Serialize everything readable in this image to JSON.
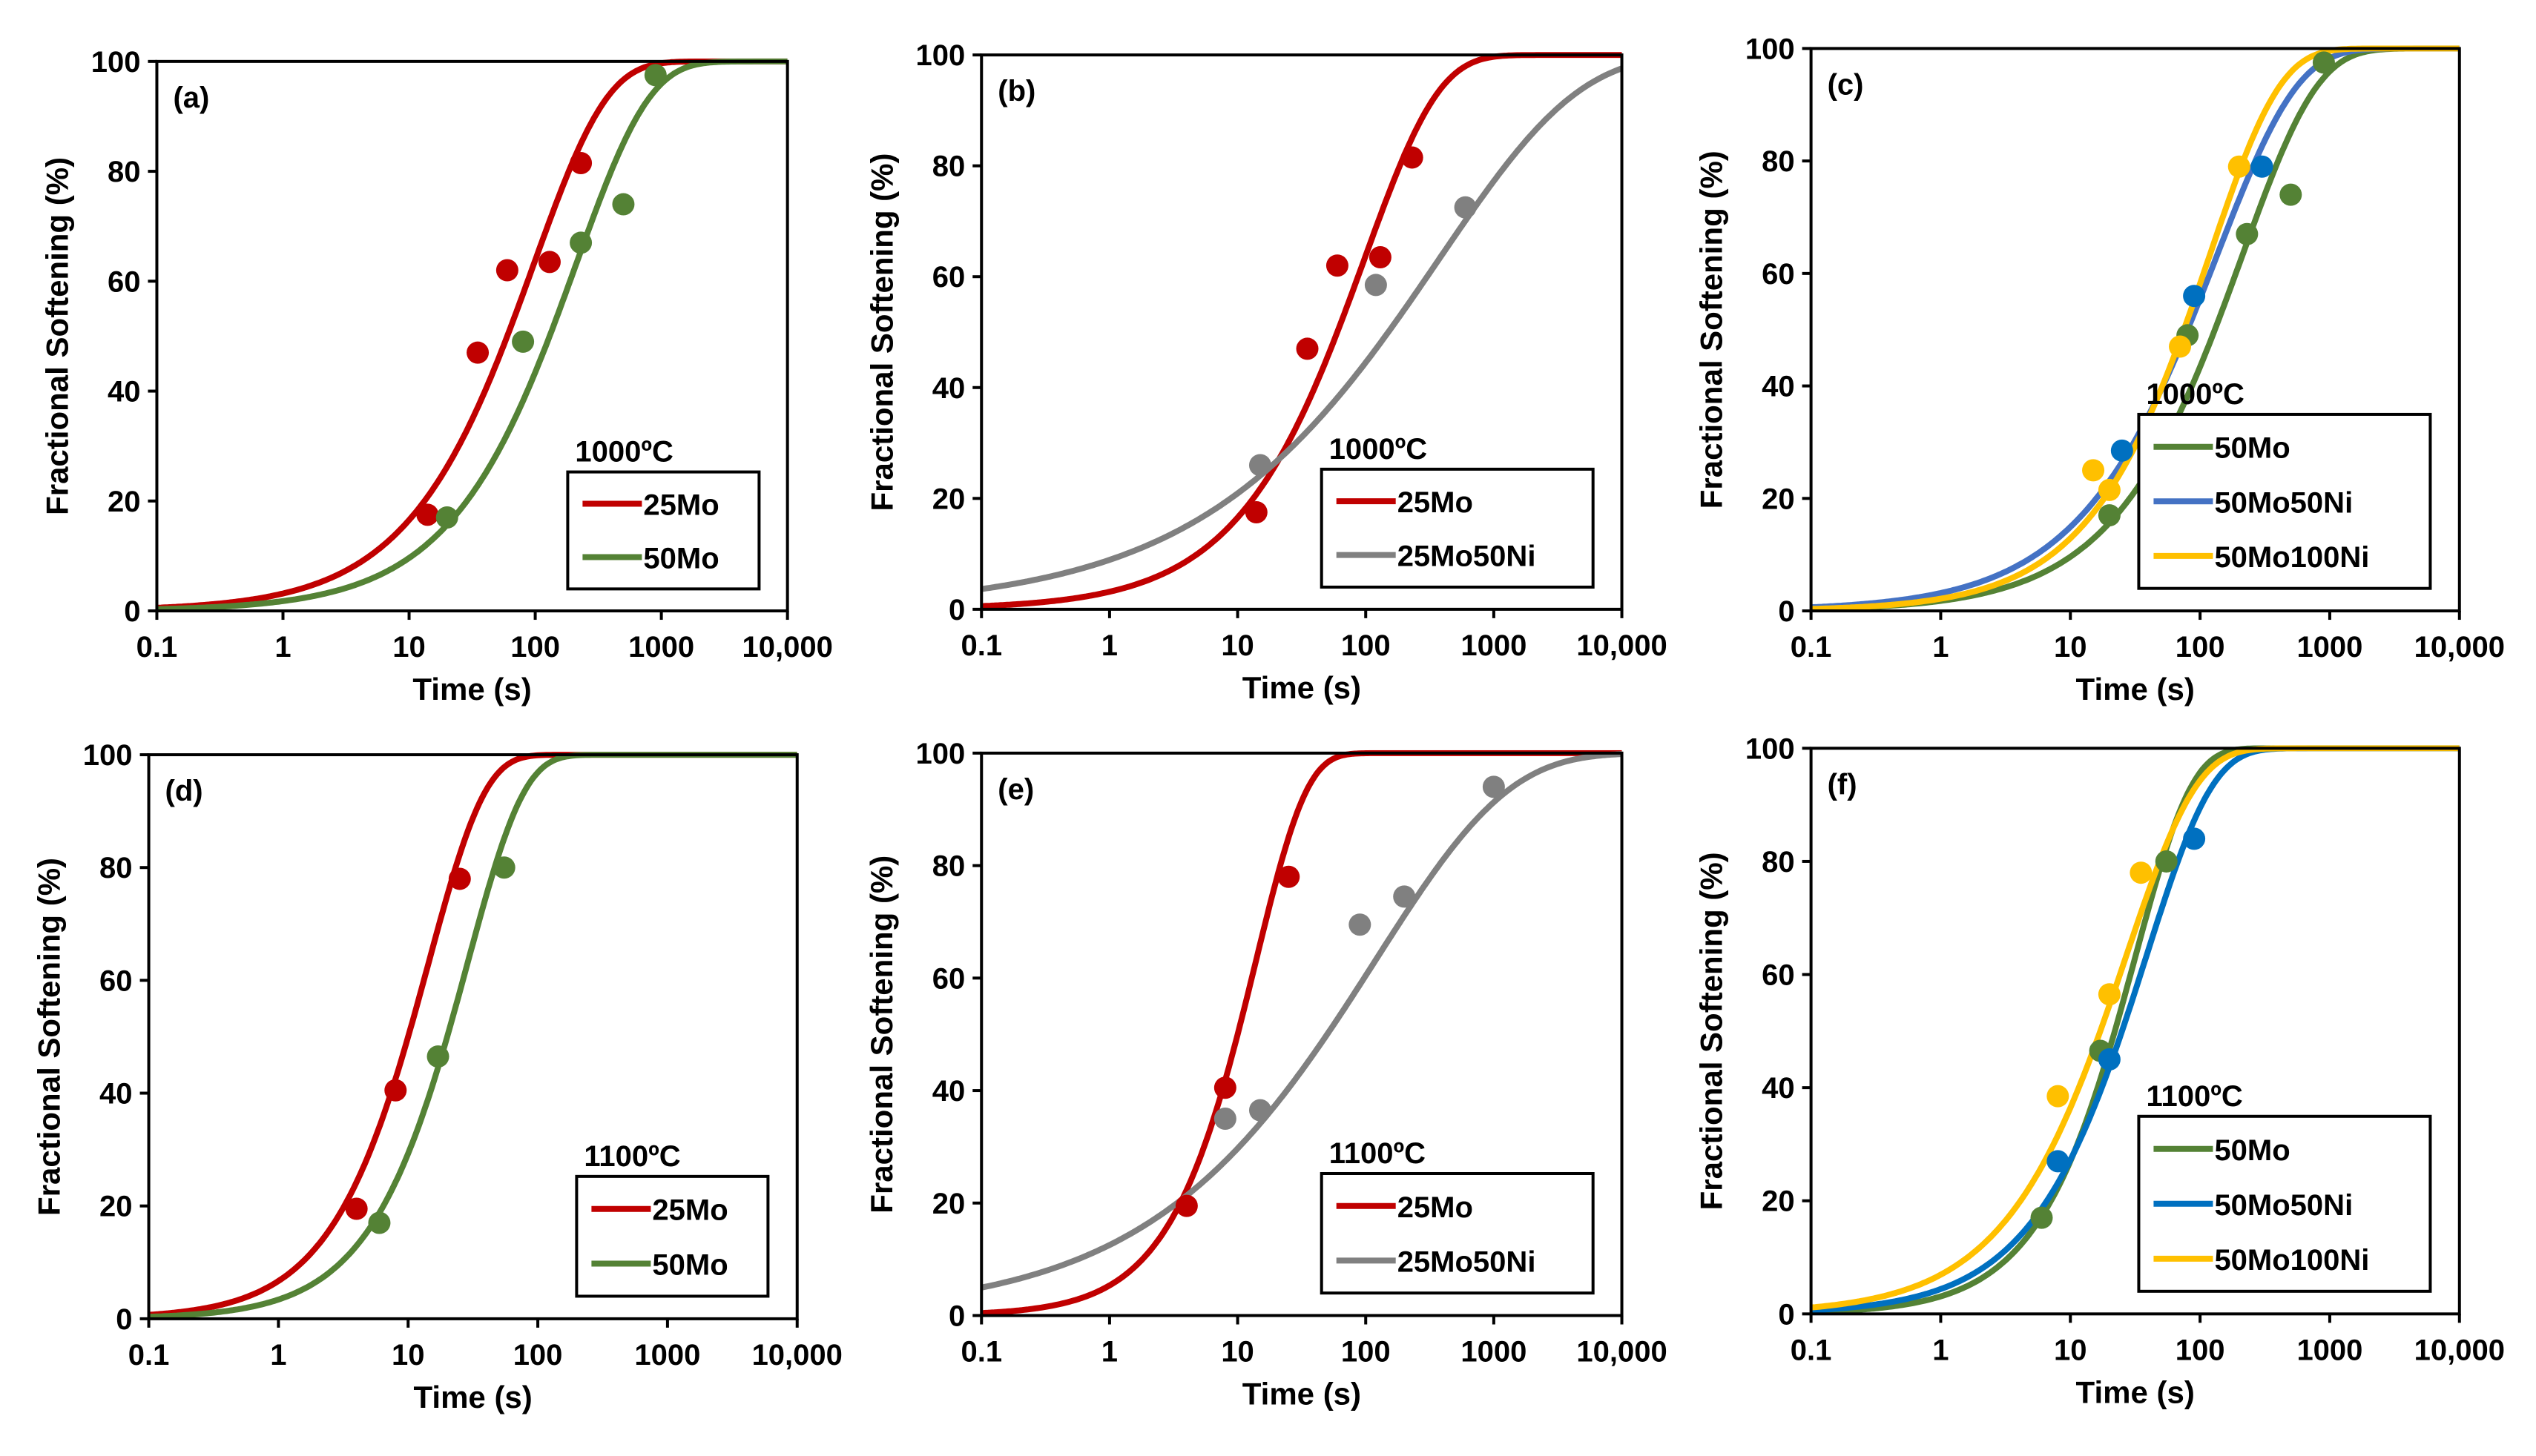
{
  "chart_data": [
    {
      "type": "line",
      "panel_label": "(a)",
      "annotation": "1000ºC",
      "xlabel": "Time (s)",
      "ylabel": "Fractional Softening (%)",
      "xscale": "log",
      "xlim": [
        0.1,
        10000
      ],
      "ylim": [
        0,
        100
      ],
      "xticks": [
        "0.1",
        "1",
        "10",
        "100",
        "1000",
        "10,000"
      ],
      "yticks": [
        "0",
        "20",
        "40",
        "60",
        "80",
        "100"
      ],
      "legend_position": "bottom-right",
      "series": [
        {
          "name": "25Mo",
          "color": "#c00000",
          "fit": {
            "t50": 60,
            "n": 0.75
          },
          "points": [
            [
              14,
              17.5
            ],
            [
              35,
              47
            ],
            [
              60,
              62
            ],
            [
              130,
              63.5
            ],
            [
              230,
              81.5
            ]
          ]
        },
        {
          "name": "50Mo",
          "color": "#548235",
          "fit": {
            "t50": 130,
            "n": 0.75
          },
          "points": [
            [
              20,
              17
            ],
            [
              80,
              49
            ],
            [
              230,
              67
            ],
            [
              500,
              74
            ],
            [
              900,
              97.5
            ]
          ]
        }
      ]
    },
    {
      "type": "line",
      "panel_label": "(b)",
      "annotation": "1000ºC",
      "xlabel": "Time (s)",
      "ylabel": "Fractional Softening (%)",
      "xscale": "log",
      "xlim": [
        0.1,
        10000
      ],
      "ylim": [
        0,
        100
      ],
      "xticks": [
        "0.1",
        "1",
        "10",
        "100",
        "1000",
        "10,000"
      ],
      "yticks": [
        "0",
        "20",
        "40",
        "60",
        "80",
        "100"
      ],
      "legend_position": "bottom-right",
      "series": [
        {
          "name": "25Mo",
          "color": "#c00000",
          "fit": {
            "t50": 60,
            "n": 0.75
          },
          "points": [
            [
              14,
              17.5
            ],
            [
              35,
              47
            ],
            [
              60,
              62
            ],
            [
              130,
              63.5
            ],
            [
              230,
              81.5
            ]
          ]
        },
        {
          "name": "25Mo50Ni",
          "color": "#808080",
          "fit": {
            "t50": 150,
            "n": 0.4
          },
          "points": [
            [
              15,
              26
            ],
            [
              120,
              58.5
            ],
            [
              600,
              72.5
            ]
          ]
        }
      ]
    },
    {
      "type": "line",
      "panel_label": "(c)",
      "annotation": "1000ºC",
      "xlabel": "Time (s)",
      "ylabel": "Fractional Softening (%)",
      "xscale": "log",
      "xlim": [
        0.1,
        10000
      ],
      "ylim": [
        0,
        100
      ],
      "xticks": [
        "0.1",
        "1",
        "10",
        "100",
        "1000",
        "10,000"
      ],
      "yticks": [
        "0",
        "20",
        "40",
        "60",
        "80",
        "100"
      ],
      "legend_position": "bottom-right",
      "series": [
        {
          "name": "50Mo",
          "color": "#548235",
          "fit": {
            "t50": 130,
            "n": 0.75
          },
          "points": [
            [
              20,
              17
            ],
            [
              80,
              49
            ],
            [
              230,
              67
            ],
            [
              500,
              74
            ],
            [
              900,
              97.5
            ]
          ]
        },
        {
          "name": "50Mo50Ni",
          "color": "#4472c4",
          "point_color": "#0070c0",
          "fit": {
            "t50": 80,
            "n": 0.7
          },
          "points": [
            [
              25,
              28.5
            ],
            [
              90,
              56
            ],
            [
              300,
              79
            ]
          ]
        },
        {
          "name": "50Mo100Ni",
          "color": "#ffc000",
          "fit": {
            "t50": 75,
            "n": 0.8
          },
          "points": [
            [
              15,
              25
            ],
            [
              20,
              21.5
            ],
            [
              70,
              47
            ],
            [
              200,
              79
            ]
          ]
        }
      ]
    },
    {
      "type": "line",
      "panel_label": "(d)",
      "annotation": "1100ºC",
      "xlabel": "Time (s)",
      "ylabel": "Fractional Softening (%)",
      "xscale": "log",
      "xlim": [
        0.1,
        10000
      ],
      "ylim": [
        0,
        100
      ],
      "xticks": [
        "0.1",
        "1",
        "10",
        "100",
        "1000",
        "10,000"
      ],
      "yticks": [
        "0",
        "20",
        "40",
        "60",
        "80",
        "100"
      ],
      "legend_position": "bottom-right",
      "series": [
        {
          "name": "25Mo",
          "color": "#c00000",
          "fit": {
            "t50": 10,
            "n": 1.0
          },
          "points": [
            [
              4,
              19.5
            ],
            [
              8,
              40.5
            ],
            [
              25,
              78
            ]
          ]
        },
        {
          "name": "50Mo",
          "color": "#548235",
          "fit": {
            "t50": 20,
            "n": 1.0
          },
          "points": [
            [
              6,
              17
            ],
            [
              17,
              46.5
            ],
            [
              55,
              80
            ]
          ]
        }
      ]
    },
    {
      "type": "line",
      "panel_label": "(e)",
      "annotation": "1100ºC",
      "xlabel": "Time (s)",
      "ylabel": "Fractional Softening (%)",
      "xscale": "log",
      "xlim": [
        0.1,
        10000
      ],
      "ylim": [
        0,
        100
      ],
      "xticks": [
        "0.1",
        "1",
        "10",
        "100",
        "1000",
        "10,000"
      ],
      "yticks": [
        "0",
        "20",
        "40",
        "60",
        "80",
        "100"
      ],
      "legend_position": "bottom-right",
      "series": [
        {
          "name": "25Mo",
          "color": "#c00000",
          "fit": {
            "t50": 10,
            "n": 1.1
          },
          "points": [
            [
              4,
              19.5
            ],
            [
              8,
              40.5
            ],
            [
              25,
              78
            ]
          ]
        },
        {
          "name": "25Mo50Ni",
          "color": "#808080",
          "fit": {
            "t50": 50,
            "n": 0.42
          },
          "points": [
            [
              8,
              35
            ],
            [
              15,
              36.5
            ],
            [
              90,
              69.5
            ],
            [
              200,
              74.5
            ],
            [
              1000,
              94
            ]
          ]
        }
      ]
    },
    {
      "type": "line",
      "panel_label": "(f)",
      "annotation": "1100ºC",
      "xlabel": "Time (s)",
      "ylabel": "Fractional Softening (%)",
      "xscale": "log",
      "xlim": [
        0.1,
        10000
      ],
      "ylim": [
        0,
        100
      ],
      "xticks": [
        "0.1",
        "1",
        "10",
        "100",
        "1000",
        "10,000"
      ],
      "yticks": [
        "0",
        "20",
        "40",
        "60",
        "80",
        "100"
      ],
      "legend_position": "bottom-right",
      "series": [
        {
          "name": "50Mo",
          "color": "#548235",
          "fit": {
            "t50": 22,
            "n": 1.0
          },
          "points": [
            [
              6,
              17
            ],
            [
              17,
              46.5
            ],
            [
              55,
              80
            ]
          ]
        },
        {
          "name": "50Mo50Ni",
          "color": "#0070c0",
          "fit": {
            "t50": 25,
            "n": 0.85
          },
          "points": [
            [
              8,
              27
            ],
            [
              20,
              45
            ],
            [
              90,
              84
            ]
          ]
        },
        {
          "name": "50Mo100Ni",
          "color": "#ffc000",
          "fit": {
            "t50": 17,
            "n": 0.8
          },
          "points": [
            [
              8,
              38.5
            ],
            [
              20,
              56.5
            ],
            [
              35,
              78
            ]
          ]
        }
      ]
    }
  ]
}
